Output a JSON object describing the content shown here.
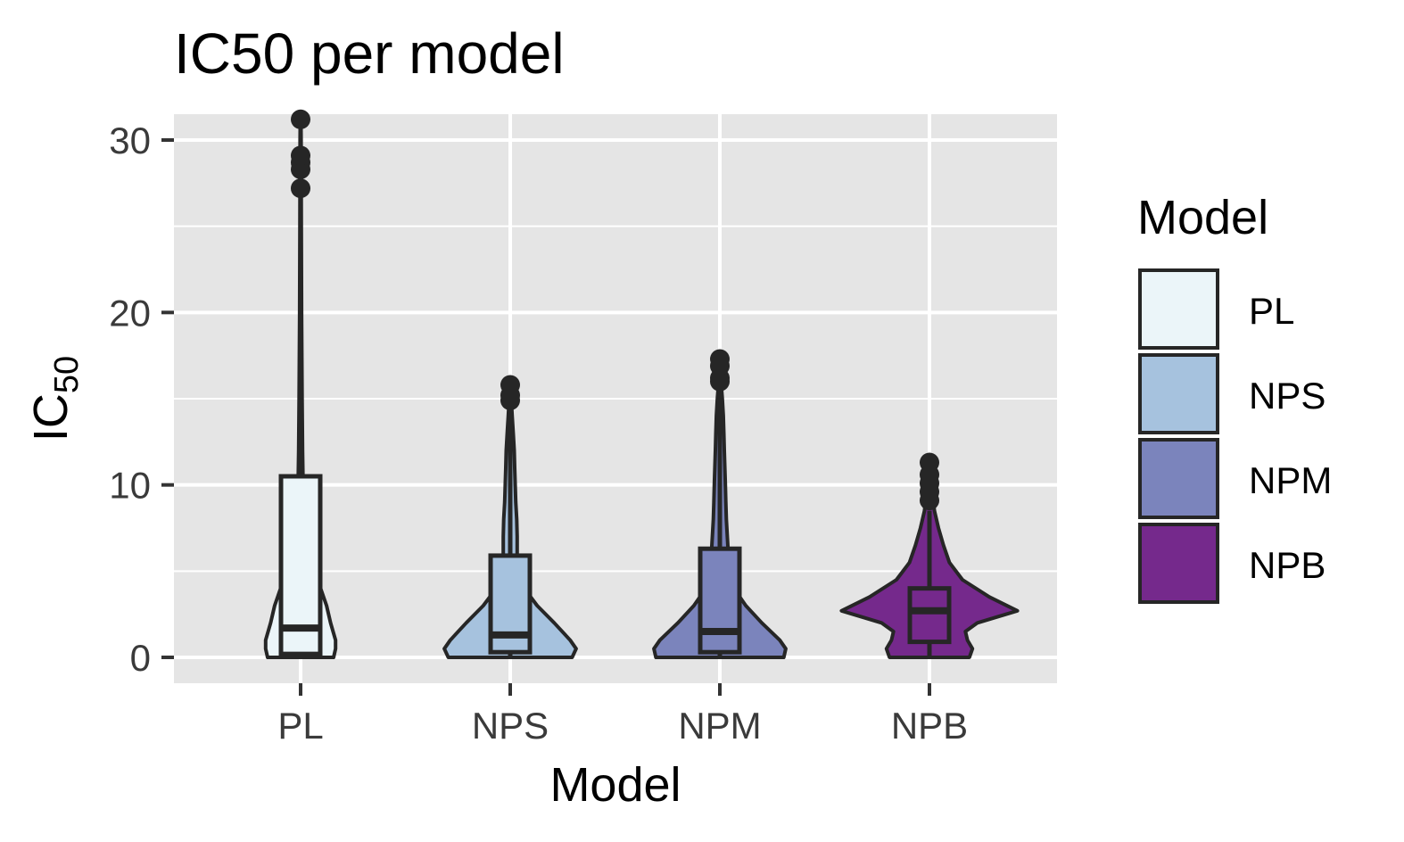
{
  "chart_data": {
    "type": "violin",
    "title": "IC50 per model",
    "xlabel": "Model",
    "ylabel": {
      "base": "IC",
      "subscript": "50"
    },
    "categories": [
      "PL",
      "NPS",
      "NPM",
      "NPB"
    ],
    "yticks": [
      "0",
      "10",
      "20",
      "30"
    ],
    "ylim": [
      -1.5,
      31.5
    ],
    "grid": true,
    "legend": {
      "title": "Model",
      "placement": "right",
      "entries": [
        "PL",
        "NPS",
        "NPM",
        "NPB"
      ]
    },
    "colors": {
      "PL": "#ebf5f9",
      "NPS": "#a6c2de",
      "NPM": "#7b84bc",
      "NPB": "#75298c",
      "outline": "#262626",
      "panel": "#e5e5e5",
      "grid": "#ffffff"
    },
    "series": [
      {
        "name": "PL",
        "min": 0,
        "max": 31.2,
        "box": {
          "q1": 0.2,
          "median": 1.7,
          "q3": 10.5,
          "whisker_low": 0,
          "whisker_high": 27
        },
        "outliers": [
          27.2,
          28.3,
          28.7,
          29.1,
          31.2
        ],
        "density": [
          [
            0,
            0.33
          ],
          [
            0.5,
            0.35
          ],
          [
            1,
            0.35
          ],
          [
            2,
            0.3
          ],
          [
            3,
            0.26
          ],
          [
            4,
            0.2
          ],
          [
            5,
            0.13
          ],
          [
            6,
            0.09
          ],
          [
            7,
            0.055
          ],
          [
            8,
            0.035
          ],
          [
            10,
            0.025
          ],
          [
            12,
            0.02
          ],
          [
            15,
            0.015
          ],
          [
            20,
            0.01
          ],
          [
            25,
            0.007
          ],
          [
            30,
            0.005
          ],
          [
            31.2,
            0.004
          ]
        ]
      },
      {
        "name": "NPS",
        "min": 0,
        "max": 15.8,
        "box": {
          "q1": 0.3,
          "median": 1.3,
          "q3": 5.9,
          "whisker_low": 0,
          "whisker_high": 14.5
        },
        "outliers": [
          14.9,
          15.2,
          15.8
        ],
        "density": [
          [
            0,
            0.62
          ],
          [
            0.5,
            0.66
          ],
          [
            1,
            0.6
          ],
          [
            2,
            0.44
          ],
          [
            3,
            0.27
          ],
          [
            4,
            0.14
          ],
          [
            5,
            0.09
          ],
          [
            6,
            0.07
          ],
          [
            7,
            0.07
          ],
          [
            8,
            0.065
          ],
          [
            9,
            0.055
          ],
          [
            10,
            0.05
          ],
          [
            11,
            0.045
          ],
          [
            12,
            0.04
          ],
          [
            13,
            0.03
          ],
          [
            14,
            0.02
          ],
          [
            15,
            0.01
          ],
          [
            15.8,
            0.005
          ]
        ]
      },
      {
        "name": "NPM",
        "min": 0,
        "max": 17.3,
        "box": {
          "q1": 0.3,
          "median": 1.5,
          "q3": 6.3,
          "whisker_low": 0,
          "whisker_high": 15.5
        },
        "outliers": [
          16.0,
          16.2,
          16.9,
          17.3
        ],
        "density": [
          [
            0,
            0.64
          ],
          [
            0.5,
            0.66
          ],
          [
            1,
            0.6
          ],
          [
            2,
            0.42
          ],
          [
            3,
            0.26
          ],
          [
            4,
            0.14
          ],
          [
            5,
            0.1
          ],
          [
            6,
            0.085
          ],
          [
            7,
            0.075
          ],
          [
            8,
            0.065
          ],
          [
            9,
            0.06
          ],
          [
            10,
            0.055
          ],
          [
            11,
            0.05
          ],
          [
            12,
            0.045
          ],
          [
            13,
            0.04
          ],
          [
            14,
            0.035
          ],
          [
            15,
            0.025
          ],
          [
            16,
            0.012
          ],
          [
            17.3,
            0.005
          ]
        ]
      },
      {
        "name": "NPB",
        "min": 0,
        "max": 11.3,
        "box": {
          "q1": 0.9,
          "median": 2.7,
          "q3": 4.0,
          "whisker_low": 0,
          "whisker_high": 8.5
        },
        "outliers": [
          9.1,
          9.6,
          10.1,
          10.6,
          11.3
        ],
        "density": [
          [
            0,
            0.4
          ],
          [
            0.5,
            0.43
          ],
          [
            1,
            0.38
          ],
          [
            1.5,
            0.36
          ],
          [
            2,
            0.48
          ],
          [
            2.7,
            0.88
          ],
          [
            3.5,
            0.6
          ],
          [
            4.5,
            0.33
          ],
          [
            5.5,
            0.2
          ],
          [
            6.5,
            0.14
          ],
          [
            7.5,
            0.09
          ],
          [
            8.5,
            0.05
          ],
          [
            9.5,
            0.03
          ],
          [
            10.5,
            0.015
          ],
          [
            11.3,
            0.005
          ]
        ]
      }
    ]
  }
}
